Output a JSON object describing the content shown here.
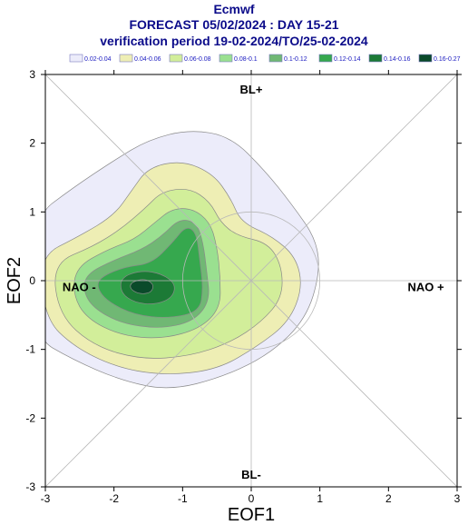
{
  "header": {
    "source": "Ecmwf",
    "forecast": "FORECAST 05/02/2024 : DAY 15-21",
    "verification": "verification period 19-02-2024/TO/25-02-2024"
  },
  "colors": {
    "title": "#0b0b8a",
    "levels": [
      "#ececfa",
      "#eeeeb4",
      "#d2ee9a",
      "#9ae090",
      "#70b874",
      "#36a84e",
      "#1c7a36",
      "#0a4a2a"
    ]
  },
  "chart_data": {
    "type": "contour",
    "xlabel": "EOF1",
    "ylabel": "EOF2",
    "xlim": [
      -3,
      3
    ],
    "ylim": [
      -3,
      3
    ],
    "xticks": [
      "-3",
      "-2",
      "-1",
      "0",
      "1",
      "2",
      "3"
    ],
    "yticks": [
      "3",
      "2",
      "1",
      "0",
      "-1",
      "-2",
      "-3"
    ],
    "legend": {
      "position": "top",
      "levels": [
        "0.02-0.04",
        "0.04-0.06",
        "0.06-0.08",
        "0.08-0.1",
        "0.1-0.12",
        "0.12-0.14",
        "0.14-0.16",
        "0.16-0.27"
      ]
    },
    "regime_labels": {
      "top": "BL+",
      "bottom": "BL-",
      "left": "NAO -",
      "right": "NAO +"
    },
    "unit_circle_radius": 1,
    "density_peak": {
      "x": -1.6,
      "y": -0.07
    }
  }
}
